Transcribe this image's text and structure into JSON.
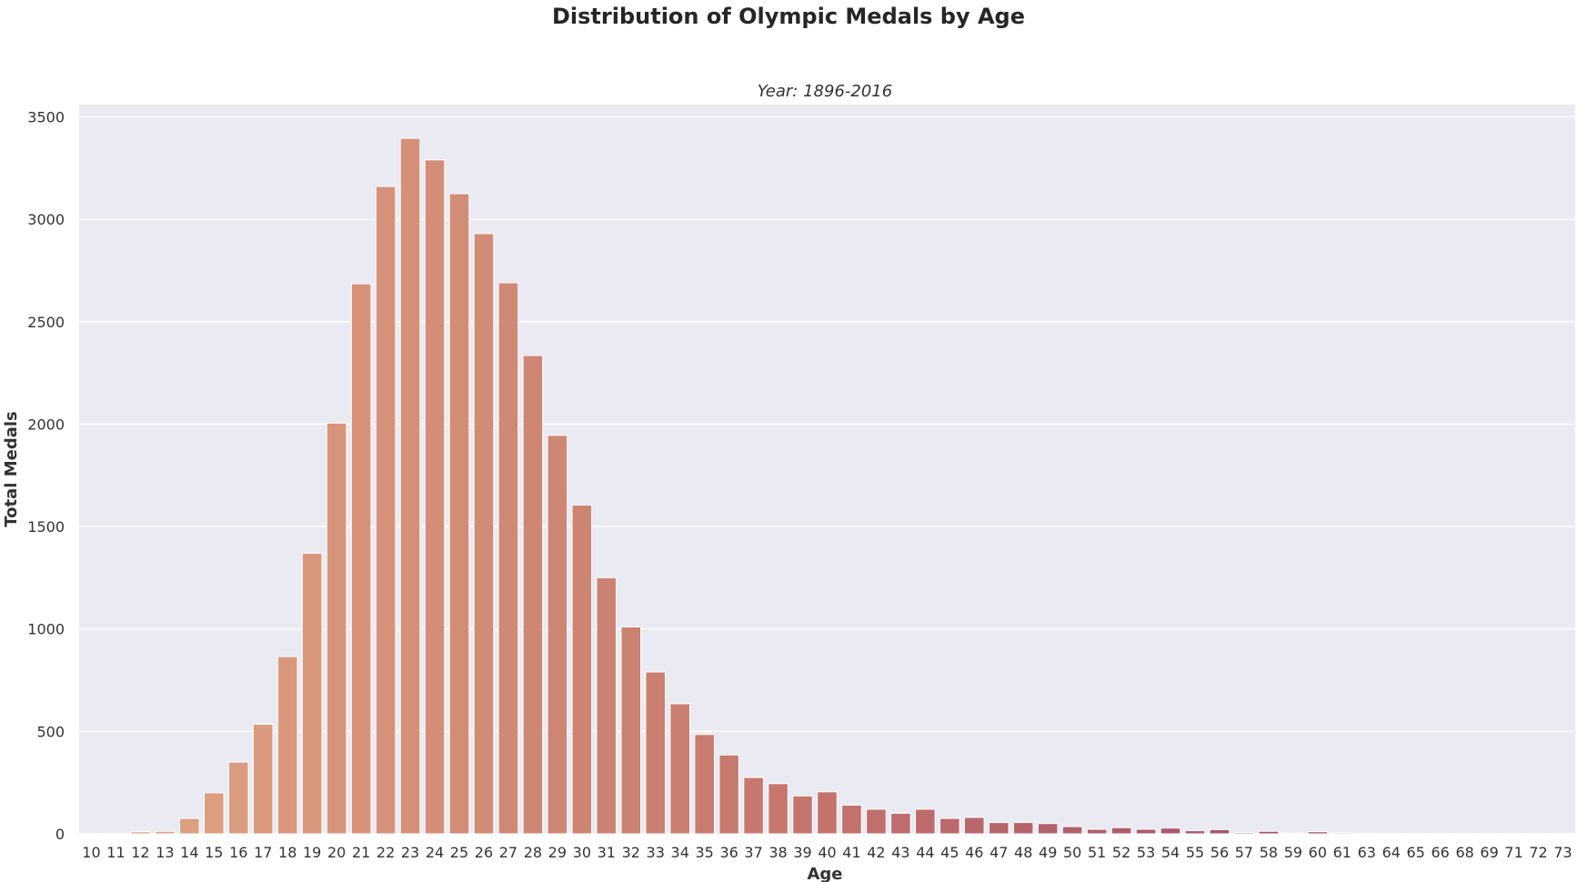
{
  "chart_data": {
    "type": "bar",
    "title": "Distribution of Olympic Medals by Age",
    "subtitle": "Year: 1896-2016",
    "xlabel": "Age",
    "ylabel": "Total Medals",
    "ylim": [
      0,
      3560
    ],
    "yticks": [
      0,
      500,
      1000,
      1500,
      2000,
      2500,
      3000,
      3500
    ],
    "grid": true,
    "categories": [
      "10",
      "11",
      "12",
      "13",
      "14",
      "15",
      "16",
      "17",
      "18",
      "19",
      "20",
      "21",
      "22",
      "23",
      "24",
      "25",
      "26",
      "27",
      "28",
      "29",
      "30",
      "31",
      "32",
      "33",
      "34",
      "35",
      "36",
      "37",
      "38",
      "39",
      "40",
      "41",
      "42",
      "43",
      "44",
      "45",
      "46",
      "47",
      "48",
      "49",
      "50",
      "51",
      "52",
      "53",
      "54",
      "55",
      "56",
      "57",
      "58",
      "59",
      "60",
      "61",
      "63",
      "64",
      "65",
      "66",
      "68",
      "69",
      "71",
      "72",
      "73"
    ],
    "values": [
      1,
      1,
      10,
      12,
      75,
      200,
      350,
      535,
      865,
      1370,
      2005,
      2685,
      3160,
      3395,
      3290,
      3125,
      2930,
      2690,
      2335,
      1945,
      1605,
      1250,
      1010,
      790,
      635,
      485,
      385,
      275,
      245,
      185,
      205,
      140,
      120,
      100,
      120,
      75,
      80,
      55,
      55,
      50,
      35,
      22,
      30,
      22,
      28,
      15,
      20,
      6,
      12,
      4,
      10,
      5,
      3,
      1,
      1,
      1,
      1,
      1,
      1,
      1,
      1
    ],
    "color_start": "#e0a682",
    "color_mid": "#c4736c",
    "color_end": "#8a3b68",
    "background": "#eaeaf2",
    "gridline_color": "#ffffff"
  }
}
